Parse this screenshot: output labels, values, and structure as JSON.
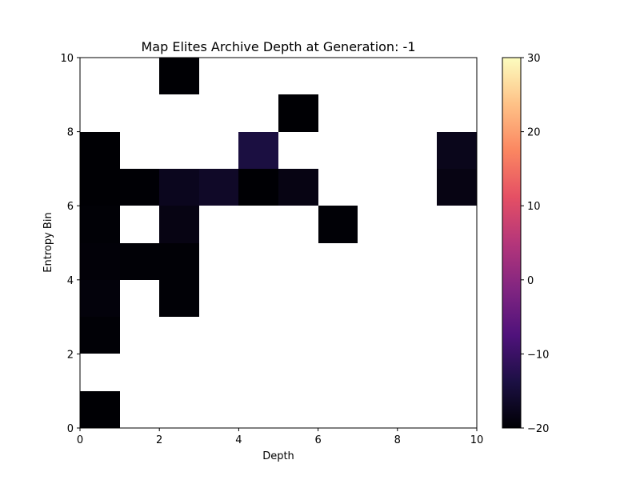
{
  "chart_data": {
    "type": "heatmap",
    "title": "Map Elites Archive Depth at Generation: -1",
    "xlabel": "Depth",
    "ylabel": "Entropy Bin",
    "xlim": [
      0,
      10
    ],
    "ylim": [
      0,
      10
    ],
    "x_ticks": [
      "0",
      "2",
      "4",
      "6",
      "8",
      "10"
    ],
    "y_ticks": [
      "0",
      "2",
      "4",
      "6",
      "8",
      "10"
    ],
    "colormap": "magma",
    "color_range": [
      -20,
      30
    ],
    "colorbar_ticks": [
      "−20",
      "−10",
      "0",
      "10",
      "20",
      "30"
    ],
    "empty_color": "#ffffff",
    "cells": [
      {
        "x": 0,
        "y": 0,
        "value": -20
      },
      {
        "x": 0,
        "y": 2,
        "value": -19.8
      },
      {
        "x": 0,
        "y": 3,
        "value": -19.3
      },
      {
        "x": 0,
        "y": 4,
        "value": -19.6
      },
      {
        "x": 0,
        "y": 5,
        "value": -19.8
      },
      {
        "x": 0,
        "y": 6,
        "value": -20
      },
      {
        "x": 0,
        "y": 7,
        "value": -20
      },
      {
        "x": 1,
        "y": 4,
        "value": -19.8
      },
      {
        "x": 1,
        "y": 6,
        "value": -19.9
      },
      {
        "x": 2,
        "y": 3,
        "value": -19.8
      },
      {
        "x": 2,
        "y": 4,
        "value": -19.8
      },
      {
        "x": 2,
        "y": 5,
        "value": -18.5
      },
      {
        "x": 2,
        "y": 6,
        "value": -17.5
      },
      {
        "x": 2,
        "y": 9,
        "value": -20
      },
      {
        "x": 3,
        "y": 6,
        "value": -16.5
      },
      {
        "x": 4,
        "y": 6,
        "value": -20
      },
      {
        "x": 4,
        "y": 7,
        "value": -14
      },
      {
        "x": 5,
        "y": 6,
        "value": -18.5
      },
      {
        "x": 5,
        "y": 8,
        "value": -20
      },
      {
        "x": 6,
        "y": 5,
        "value": -19.8
      },
      {
        "x": 9,
        "y": 6,
        "value": -18.5
      },
      {
        "x": 9,
        "y": 7,
        "value": -17.8
      }
    ]
  }
}
